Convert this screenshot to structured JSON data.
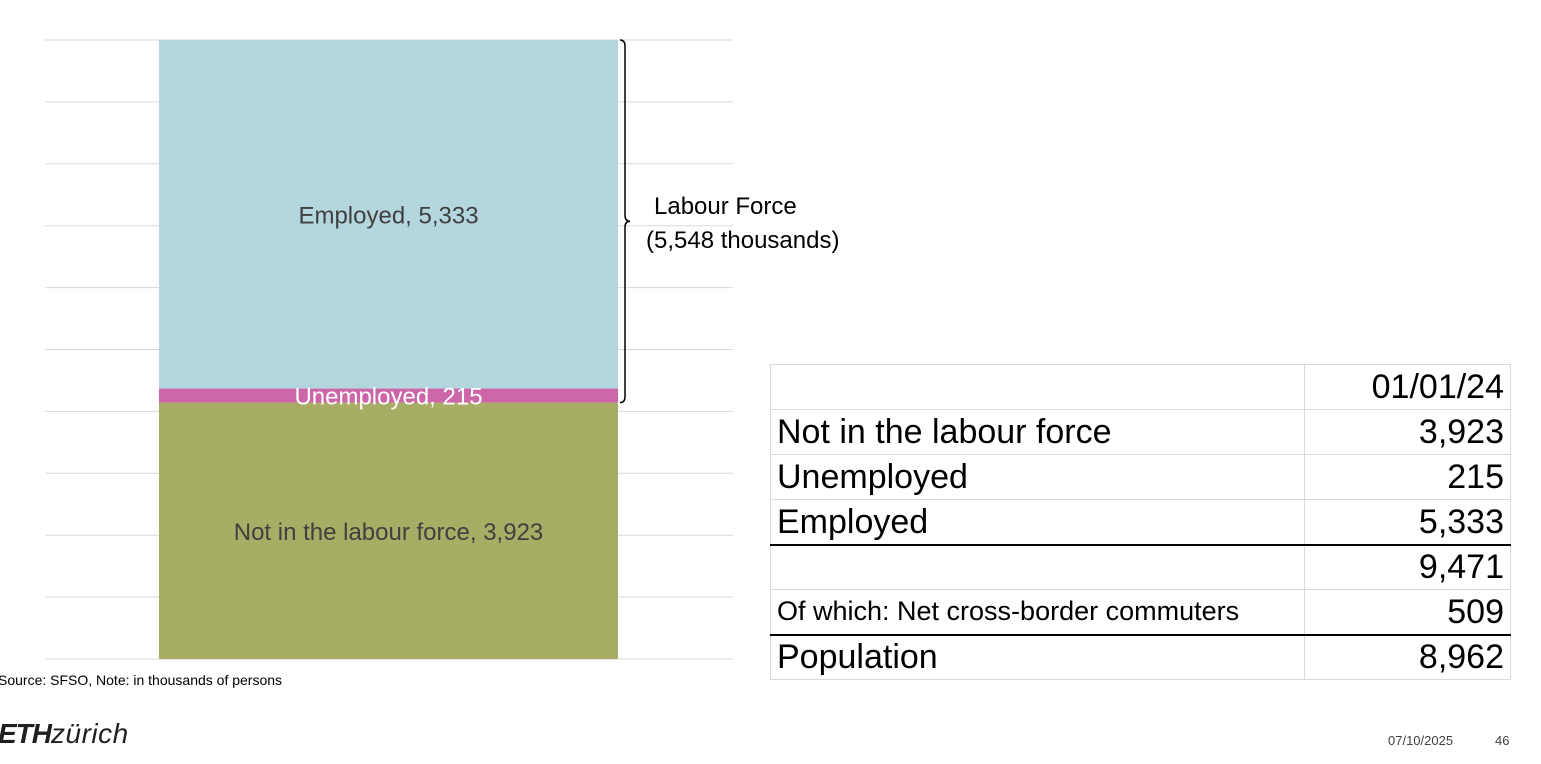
{
  "chart_data": {
    "type": "bar",
    "stacked": true,
    "categories": [
      ""
    ],
    "series": [
      {
        "name": "Not in the labour force",
        "values": [
          3923
        ],
        "color": "#a8ad66",
        "label": "Not in the labour force, 3,923"
      },
      {
        "name": "Unemployed",
        "values": [
          215
        ],
        "color": "#cc66a8",
        "label": "Unemployed, 215"
      },
      {
        "name": "Employed",
        "values": [
          5333
        ],
        "color": "#b4d6de",
        "label": "Employed, 5,333"
      }
    ],
    "ylim": [
      0,
      9471
    ],
    "grid": true,
    "gridline_count": 10,
    "annotation": {
      "line1": "Labour Force",
      "line2": "(5,548 thousands)",
      "spans_series": [
        "Unemployed",
        "Employed"
      ]
    }
  },
  "source_note": "Source: SFSO, Note: in thousands of persons",
  "table": {
    "header": {
      "label": "",
      "value": "01/01/24"
    },
    "rows": [
      {
        "label": "Not in the labour force",
        "value": "3,923"
      },
      {
        "label": "Unemployed",
        "value": "215"
      },
      {
        "label": "Employed",
        "value": "5,333"
      },
      {
        "label": "",
        "value": "9,471"
      },
      {
        "label": "Of which: Net cross-border commuters",
        "value": "509"
      },
      {
        "label": "Population",
        "value": "8,962"
      }
    ]
  },
  "footer": {
    "logo_bold": "ETH",
    "logo_text": "zürich",
    "date": "07/10/2025",
    "page": "46"
  }
}
